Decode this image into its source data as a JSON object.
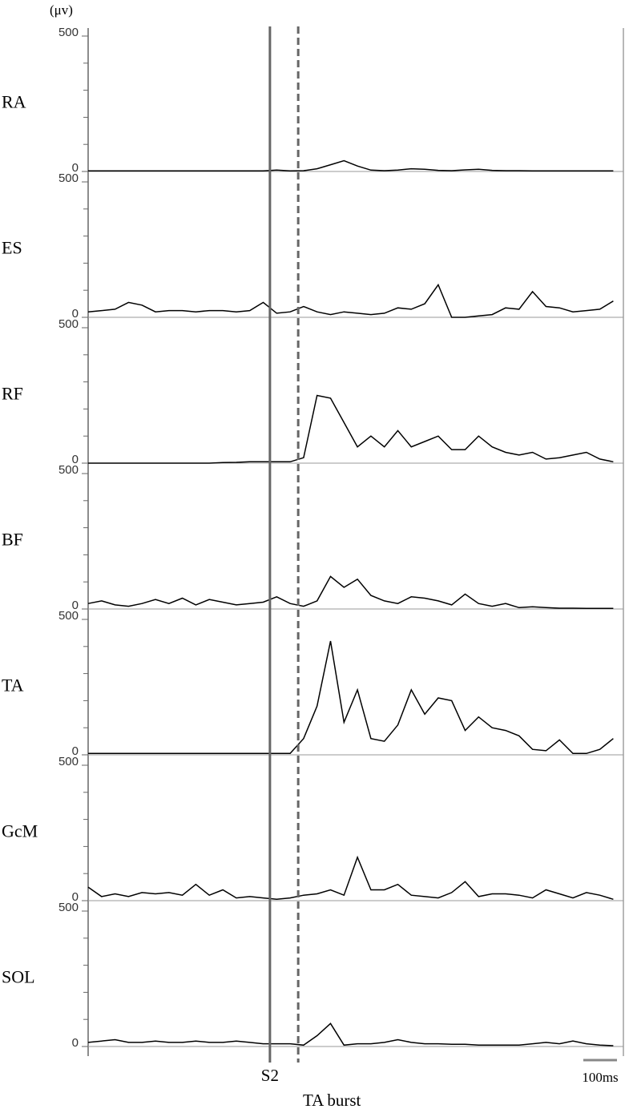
{
  "y_unit": "(μv)",
  "markers": [
    {
      "label": "S2",
      "x": 540,
      "style": "solid"
    },
    {
      "label": "TA burst",
      "x": 624,
      "style": "dashed"
    }
  ],
  "scale_bar": {
    "label": "100ms",
    "length": 100
  },
  "chart_data": [
    {
      "type": "line",
      "title": "RA",
      "color": "#000000",
      "xlim": [
        0,
        1590
      ],
      "ylim": [
        0,
        500
      ],
      "yticks": [
        0,
        500
      ],
      "minor_yticks": [
        100,
        200,
        300,
        400
      ],
      "x": [
        0,
        40,
        80,
        120,
        160,
        200,
        240,
        280,
        320,
        360,
        400,
        440,
        480,
        520,
        560,
        600,
        640,
        680,
        720,
        760,
        800,
        840,
        880,
        920,
        960,
        1000,
        1040,
        1080,
        1120,
        1160,
        1200,
        1240,
        1280,
        1320,
        1360,
        1400,
        1440,
        1480,
        1520,
        1560
      ],
      "values": [
        2,
        2,
        2,
        2,
        2,
        2,
        2,
        2,
        2,
        2,
        2,
        2,
        2,
        2,
        5,
        2,
        3,
        10,
        25,
        40,
        20,
        5,
        3,
        5,
        10,
        8,
        4,
        3,
        6,
        8,
        4,
        3,
        3,
        2,
        2,
        2,
        2,
        2,
        2,
        2
      ]
    },
    {
      "type": "line",
      "title": "ES",
      "color": "#000000",
      "xlim": [
        0,
        1590
      ],
      "ylim": [
        0,
        500
      ],
      "yticks": [
        0,
        500
      ],
      "minor_yticks": [
        100,
        200,
        300,
        400
      ],
      "x": [
        0,
        40,
        80,
        120,
        160,
        200,
        240,
        280,
        320,
        360,
        400,
        440,
        480,
        520,
        560,
        600,
        640,
        680,
        720,
        760,
        800,
        840,
        880,
        920,
        960,
        1000,
        1040,
        1080,
        1120,
        1160,
        1200,
        1240,
        1280,
        1320,
        1360,
        1400,
        1440,
        1480,
        1520,
        1560
      ],
      "values": [
        20,
        25,
        30,
        55,
        45,
        20,
        25,
        25,
        20,
        25,
        25,
        20,
        25,
        55,
        15,
        20,
        40,
        20,
        10,
        20,
        15,
        10,
        15,
        35,
        30,
        50,
        120,
        0,
        0,
        5,
        10,
        35,
        30,
        95,
        40,
        35,
        20,
        25,
        30,
        60
      ]
    },
    {
      "type": "line",
      "title": "RF",
      "color": "#000000",
      "xlim": [
        0,
        1590
      ],
      "ylim": [
        0,
        500
      ],
      "yticks": [
        0,
        500
      ],
      "minor_yticks": [
        100,
        200,
        300,
        400
      ],
      "x": [
        0,
        40,
        80,
        120,
        160,
        200,
        240,
        280,
        320,
        360,
        400,
        440,
        480,
        520,
        560,
        600,
        640,
        680,
        720,
        760,
        800,
        840,
        880,
        920,
        960,
        1000,
        1040,
        1080,
        1120,
        1160,
        1200,
        1240,
        1280,
        1320,
        1360,
        1400,
        1440,
        1480,
        1520,
        1560
      ],
      "values": [
        0,
        0,
        0,
        0,
        0,
        0,
        0,
        0,
        0,
        0,
        2,
        3,
        5,
        5,
        5,
        5,
        20,
        250,
        240,
        150,
        60,
        100,
        60,
        120,
        60,
        80,
        100,
        50,
        50,
        100,
        60,
        40,
        30,
        40,
        15,
        20,
        30,
        40,
        15,
        5
      ]
    },
    {
      "type": "line",
      "title": "BF",
      "color": "#000000",
      "xlim": [
        0,
        1590
      ],
      "ylim": [
        0,
        500
      ],
      "yticks": [
        0,
        500
      ],
      "minor_yticks": [
        100,
        200,
        300,
        400
      ],
      "x": [
        0,
        40,
        80,
        120,
        160,
        200,
        240,
        280,
        320,
        360,
        400,
        440,
        480,
        520,
        560,
        600,
        640,
        680,
        720,
        760,
        800,
        840,
        880,
        920,
        960,
        1000,
        1040,
        1080,
        1120,
        1160,
        1200,
        1240,
        1280,
        1320,
        1360,
        1400,
        1440,
        1480,
        1520,
        1560
      ],
      "values": [
        20,
        30,
        15,
        10,
        20,
        35,
        20,
        40,
        15,
        35,
        25,
        15,
        20,
        25,
        45,
        20,
        10,
        30,
        120,
        80,
        110,
        50,
        30,
        20,
        45,
        40,
        30,
        15,
        55,
        20,
        10,
        20,
        5,
        8,
        5,
        3,
        3,
        2,
        2,
        2
      ]
    },
    {
      "type": "line",
      "title": "TA",
      "color": "#000000",
      "xlim": [
        0,
        1590
      ],
      "ylim": [
        0,
        500
      ],
      "yticks": [
        0,
        500
      ],
      "minor_yticks": [
        100,
        200,
        300,
        400
      ],
      "x": [
        0,
        40,
        80,
        120,
        160,
        200,
        240,
        280,
        320,
        360,
        400,
        440,
        480,
        520,
        560,
        600,
        640,
        680,
        720,
        760,
        800,
        840,
        880,
        920,
        960,
        1000,
        1040,
        1080,
        1120,
        1160,
        1200,
        1240,
        1280,
        1320,
        1360,
        1400,
        1440,
        1480,
        1520,
        1560
      ],
      "values": [
        5,
        5,
        5,
        5,
        5,
        5,
        5,
        5,
        5,
        5,
        5,
        5,
        5,
        5,
        5,
        5,
        60,
        180,
        420,
        120,
        240,
        60,
        50,
        110,
        240,
        150,
        210,
        200,
        90,
        140,
        100,
        90,
        70,
        20,
        15,
        55,
        5,
        5,
        20,
        60
      ]
    },
    {
      "type": "line",
      "title": "GcM",
      "color": "#000000",
      "xlim": [
        0,
        1590
      ],
      "ylim": [
        0,
        500
      ],
      "yticks": [
        0,
        500
      ],
      "minor_yticks": [
        100,
        200,
        300,
        400
      ],
      "x": [
        0,
        40,
        80,
        120,
        160,
        200,
        240,
        280,
        320,
        360,
        400,
        440,
        480,
        520,
        560,
        600,
        640,
        680,
        720,
        760,
        800,
        840,
        880,
        920,
        960,
        1000,
        1040,
        1080,
        1120,
        1160,
        1200,
        1240,
        1280,
        1320,
        1360,
        1400,
        1440,
        1480,
        1520,
        1560
      ],
      "values": [
        50,
        15,
        25,
        15,
        30,
        25,
        30,
        20,
        60,
        20,
        40,
        10,
        15,
        10,
        5,
        10,
        20,
        25,
        40,
        20,
        160,
        40,
        40,
        60,
        20,
        15,
        10,
        30,
        70,
        15,
        25,
        25,
        20,
        10,
        40,
        25,
        10,
        30,
        20,
        5
      ]
    },
    {
      "type": "line",
      "title": "SOL",
      "color": "#000000",
      "xlim": [
        0,
        1590
      ],
      "ylim": [
        0,
        500
      ],
      "yticks": [
        0,
        500
      ],
      "minor_yticks": [
        100,
        200,
        300,
        400
      ],
      "x": [
        0,
        40,
        80,
        120,
        160,
        200,
        240,
        280,
        320,
        360,
        400,
        440,
        480,
        520,
        560,
        600,
        640,
        680,
        720,
        760,
        800,
        840,
        880,
        920,
        960,
        1000,
        1040,
        1080,
        1120,
        1160,
        1200,
        1240,
        1280,
        1320,
        1360,
        1400,
        1440,
        1480,
        1520,
        1560
      ],
      "values": [
        15,
        20,
        25,
        15,
        15,
        20,
        15,
        15,
        20,
        15,
        15,
        20,
        15,
        10,
        10,
        10,
        5,
        40,
        85,
        5,
        10,
        10,
        15,
        25,
        15,
        10,
        10,
        8,
        8,
        5,
        5,
        5,
        5,
        10,
        15,
        10,
        20,
        10,
        5,
        3
      ]
    }
  ]
}
